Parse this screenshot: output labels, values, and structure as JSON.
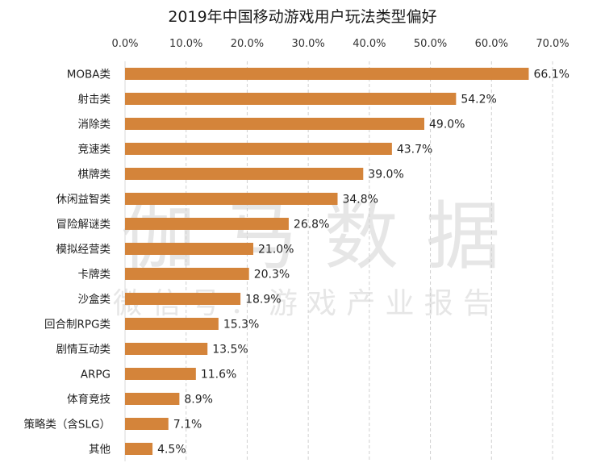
{
  "chart_data": {
    "type": "bar",
    "orientation": "horizontal",
    "title": "2019年中国移动游戏用户玩法类型偏好",
    "xlabel": "",
    "ylabel": "",
    "xlim": [
      0,
      70
    ],
    "x_ticks": [
      "0.0%",
      "10.0%",
      "20.0%",
      "30.0%",
      "40.0%",
      "50.0%",
      "60.0%",
      "70.0%"
    ],
    "x_tick_values": [
      0,
      10,
      20,
      30,
      40,
      50,
      60,
      70
    ],
    "x_axis_position": "top",
    "grid": true,
    "legend": "none",
    "bar_color": "#D4843A",
    "categories": [
      "MOBA类",
      "射击类",
      "消除类",
      "竞速类",
      "棋牌类",
      "休闲益智类",
      "冒险解谜类",
      "模拟经营类",
      "卡牌类",
      "沙盒类",
      "回合制RPG类",
      "剧情互动类",
      "ARPG",
      "体育竞技",
      "策略类（含SLG）",
      "其他"
    ],
    "values": [
      66.1,
      54.2,
      49.0,
      43.7,
      39.0,
      34.8,
      26.8,
      21.0,
      20.3,
      18.9,
      15.3,
      13.5,
      11.6,
      8.9,
      7.1,
      4.5
    ],
    "value_labels": [
      "66.1%",
      "54.2%",
      "49.0%",
      "43.7%",
      "39.0%",
      "34.8%",
      "26.8%",
      "21.0%",
      "20.3%",
      "18.9%",
      "15.3%",
      "13.5%",
      "11.6%",
      "8.9%",
      "7.1%",
      "4.5%"
    ],
    "watermark": [
      "伽马数据",
      "微信号：游戏产业报告"
    ]
  }
}
